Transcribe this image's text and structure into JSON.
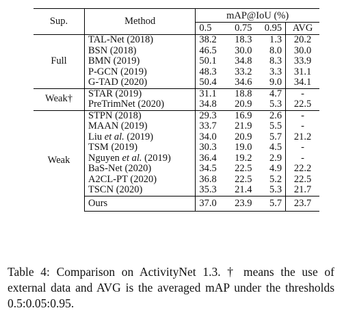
{
  "table": {
    "headers": {
      "sup": "Sup.",
      "method": "Method",
      "metric_group": "mAP@IoU (%)",
      "thresholds": [
        "0.5",
        "0.75",
        "0.95",
        "AVG"
      ]
    },
    "groups": [
      {
        "label": "Full",
        "rows": [
          {
            "method": "TAL-Net (2018)",
            "v": [
              "38.2",
              "18.3",
              "1.3",
              "20.2"
            ]
          },
          {
            "method": "BSN (2018)",
            "v": [
              "46.5",
              "30.0",
              "8.0",
              "30.0"
            ]
          },
          {
            "method": "BMN (2019)",
            "v": [
              "50.1",
              "34.8",
              "8.3",
              "33.9"
            ]
          },
          {
            "method": "P-GCN (2019)",
            "v": [
              "48.3",
              "33.2",
              "3.3",
              "31.1"
            ]
          },
          {
            "method": "G-TAD (2020)",
            "v": [
              "50.4",
              "34.6",
              "9.0",
              "34.1"
            ]
          }
        ]
      },
      {
        "label": "Weak†",
        "rows": [
          {
            "method": "STAR (2019)",
            "v": [
              "31.1",
              "18.8",
              "4.7",
              "-"
            ]
          },
          {
            "method": "PreTrimNet (2020)",
            "v": [
              "34.8",
              "20.9",
              "5.3",
              "22.5"
            ]
          }
        ]
      },
      {
        "label": "Weak",
        "rows": [
          {
            "method": "STPN (2018)",
            "v": [
              "29.3",
              "16.9",
              "2.6",
              "-"
            ]
          },
          {
            "method": "MAAN (2019)",
            "v": [
              "33.7",
              "21.9",
              "5.5",
              "-"
            ]
          },
          {
            "method_pre": "Liu ",
            "method_em": "et al.",
            "method_post": " (2019)",
            "v": [
              "34.0",
              "20.9",
              "5.7",
              "21.2"
            ]
          },
          {
            "method": "TSM (2019)",
            "v": [
              "30.3",
              "19.0",
              "4.5",
              "-"
            ]
          },
          {
            "method_pre": "Nguyen ",
            "method_em": "et al.",
            "method_post": " (2019)",
            "v": [
              "36.4",
              "19.2",
              "2.9",
              "-"
            ]
          },
          {
            "method": "BaS-Net (2020)",
            "v": [
              "34.5",
              "22.5",
              "4.9",
              "22.2"
            ]
          },
          {
            "method": "A2CL-PT (2020)",
            "v": [
              "36.8",
              "22.5",
              "5.2",
              "22.5"
            ]
          },
          {
            "method": "TSCN (2020)",
            "v": [
              "35.3",
              "21.4",
              "5.3",
              "21.7"
            ]
          }
        ],
        "ours": {
          "method": "Ours",
          "v": [
            "37.0",
            "23.9",
            "5.7",
            "23.7"
          ]
        }
      }
    ]
  },
  "caption": "Table 4: Comparison on ActivityNet 1.3. † means the use of external data and AVG is the averaged mAP under the thresholds 0.5:0.05:0.95."
}
